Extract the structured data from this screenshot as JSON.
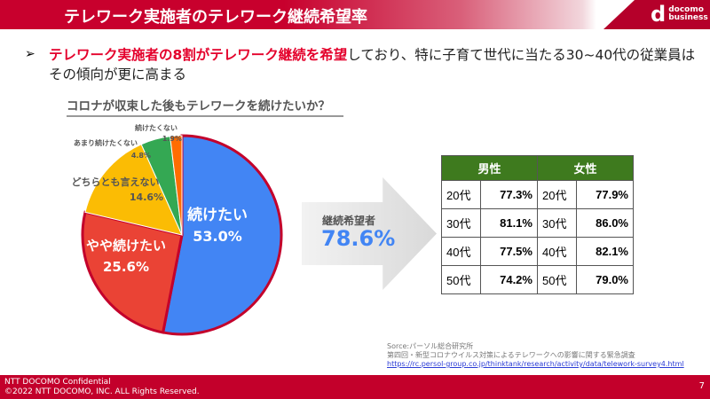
{
  "header": {
    "title": "テレワーク実施者のテレワーク継続希望率",
    "logo_text": [
      "docomo",
      "business"
    ]
  },
  "lead": {
    "bullet": "➢",
    "highlight": "テレワーク実施者の8割がテレワーク継続を希望",
    "rest": "しており、特に子育て世代に当たる30~40代の従業員はその傾向が更に高まる"
  },
  "question": "コロナが収束した後もテレワークを続けたいか？",
  "chart_data": {
    "type": "pie",
    "title": "コロナが収束した後もテレワークを続けたいか？",
    "slices": [
      {
        "label": "続けたい",
        "value": 53.0,
        "display": "53.0%",
        "color": "#4285f4"
      },
      {
        "label": "やや続けたい",
        "value": 25.6,
        "display": "25.6%",
        "color": "#ea4335"
      },
      {
        "label": "どちらとも言えない",
        "value": 14.6,
        "display": "14.6%",
        "color": "#fbbc04"
      },
      {
        "label": "あまり続けたくない",
        "value": 4.8,
        "display": "4.8%",
        "color": "#34a853"
      },
      {
        "label": "続けたくない",
        "value": 1.9,
        "display": "1.9%",
        "color": "#ff6d01"
      }
    ]
  },
  "summary": {
    "label": "継続希望者",
    "value": "78.6%"
  },
  "table": {
    "headers": [
      "男性",
      "女性"
    ],
    "rows": [
      {
        "m_age": "20代",
        "m_val": "77.3%",
        "f_age": "20代",
        "f_val": "77.9%"
      },
      {
        "m_age": "30代",
        "m_val": "81.1%",
        "f_age": "30代",
        "f_val": "86.0%"
      },
      {
        "m_age": "40代",
        "m_val": "77.5%",
        "f_age": "40代",
        "f_val": "82.1%"
      },
      {
        "m_age": "50代",
        "m_val": "74.2%",
        "f_age": "50代",
        "f_val": "79.0%"
      }
    ]
  },
  "source": {
    "line1": "Sorce:パーソル総合研究所",
    "line2": "第四回・新型コロナウイルス対策によるテレワークへの影響に関する緊急調査",
    "url": "https://rc.persol-group.co.jp/thinktank/research/activity/data/telework-survey4.html"
  },
  "footer": {
    "line1": "NTT DOCOMO Confidential",
    "line2": "©2022 NTT DOCOMO, INC. ALL Rights Reserved.",
    "page": "7"
  }
}
